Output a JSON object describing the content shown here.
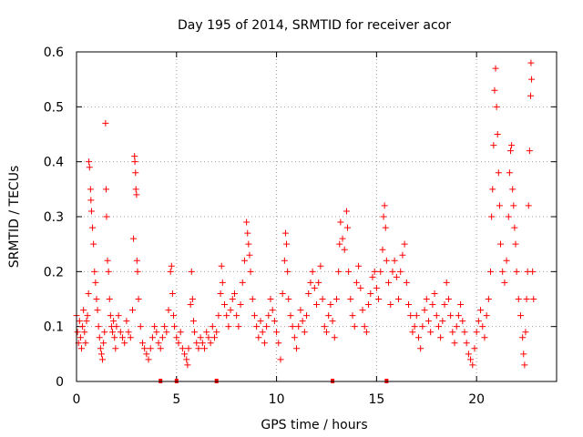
{
  "chart_data": {
    "type": "scatter",
    "title": "Day 195 of 2014, SRMTID for receiver acor",
    "xlabel": "GPS time / hours",
    "ylabel": "SRMTID / TECUs",
    "xlim": [
      0,
      24
    ],
    "ylim": [
      0,
      0.6
    ],
    "x_ticks": [
      0,
      5,
      10,
      15,
      20
    ],
    "y_ticks": [
      0,
      0.1,
      0.2,
      0.3,
      0.4,
      0.5,
      0.6
    ],
    "x_tick_labels": [
      "0",
      "5",
      "10",
      "15",
      "20"
    ],
    "y_tick_labels": [
      "0",
      "0.1",
      "0.2",
      "0.3",
      "0.4",
      "0.5",
      "0.6"
    ],
    "grid": true,
    "marker": "+",
    "color": "#ff0000",
    "series": [
      {
        "name": "SRMTID",
        "points": [
          [
            0.0,
            0.12
          ],
          [
            0.05,
            0.09
          ],
          [
            0.1,
            0.07
          ],
          [
            0.15,
            0.11
          ],
          [
            0.2,
            0.08
          ],
          [
            0.25,
            0.06
          ],
          [
            0.3,
            0.1
          ],
          [
            0.35,
            0.13
          ],
          [
            0.4,
            0.09
          ],
          [
            0.45,
            0.07
          ],
          [
            0.5,
            0.11
          ],
          [
            0.55,
            0.12
          ],
          [
            0.6,
            0.16
          ],
          [
            0.62,
            0.4
          ],
          [
            0.65,
            0.39
          ],
          [
            0.7,
            0.35
          ],
          [
            0.72,
            0.33
          ],
          [
            0.75,
            0.31
          ],
          [
            0.8,
            0.28
          ],
          [
            0.85,
            0.25
          ],
          [
            0.9,
            0.2
          ],
          [
            0.95,
            0.18
          ],
          [
            1.0,
            0.15
          ],
          [
            1.05,
            0.13
          ],
          [
            1.1,
            0.1
          ],
          [
            1.15,
            0.08
          ],
          [
            1.2,
            0.06
          ],
          [
            1.25,
            0.05
          ],
          [
            1.3,
            0.04
          ],
          [
            1.35,
            0.07
          ],
          [
            1.4,
            0.09
          ],
          [
            1.45,
            0.47
          ],
          [
            1.48,
            0.35
          ],
          [
            1.5,
            0.3
          ],
          [
            1.55,
            0.22
          ],
          [
            1.6,
            0.2
          ],
          [
            1.65,
            0.15
          ],
          [
            1.7,
            0.12
          ],
          [
            1.75,
            0.1
          ],
          [
            1.8,
            0.09
          ],
          [
            1.85,
            0.11
          ],
          [
            1.9,
            0.08
          ],
          [
            1.95,
            0.06
          ],
          [
            2.0,
            0.1
          ],
          [
            2.1,
            0.12
          ],
          [
            2.2,
            0.09
          ],
          [
            2.3,
            0.08
          ],
          [
            2.4,
            0.07
          ],
          [
            2.5,
            0.11
          ],
          [
            2.6,
            0.09
          ],
          [
            2.7,
            0.08
          ],
          [
            2.8,
            0.13
          ],
          [
            2.85,
            0.26
          ],
          [
            2.9,
            0.41
          ],
          [
            2.92,
            0.4
          ],
          [
            2.95,
            0.38
          ],
          [
            2.97,
            0.35
          ],
          [
            3.0,
            0.34
          ],
          [
            3.02,
            0.22
          ],
          [
            3.05,
            0.2
          ],
          [
            3.1,
            0.15
          ],
          [
            3.2,
            0.1
          ],
          [
            3.3,
            0.07
          ],
          [
            3.4,
            0.06
          ],
          [
            3.5,
            0.05
          ],
          [
            3.6,
            0.04
          ],
          [
            3.7,
            0.06
          ],
          [
            3.8,
            0.08
          ],
          [
            3.9,
            0.1
          ],
          [
            4.0,
            0.09
          ],
          [
            4.1,
            0.07
          ],
          [
            4.2,
            0.06
          ],
          [
            4.3,
            0.08
          ],
          [
            4.4,
            0.1
          ],
          [
            4.5,
            0.09
          ],
          [
            4.6,
            0.13
          ],
          [
            4.7,
            0.2
          ],
          [
            4.75,
            0.21
          ],
          [
            4.8,
            0.16
          ],
          [
            4.85,
            0.12
          ],
          [
            4.9,
            0.1
          ],
          [
            5.0,
            0.08
          ],
          [
            5.1,
            0.07
          ],
          [
            5.2,
            0.09
          ],
          [
            5.3,
            0.06
          ],
          [
            5.4,
            0.05
          ],
          [
            5.5,
            0.04
          ],
          [
            5.55,
            0.03
          ],
          [
            5.6,
            0.06
          ],
          [
            5.7,
            0.14
          ],
          [
            5.75,
            0.2
          ],
          [
            5.8,
            0.15
          ],
          [
            5.85,
            0.11
          ],
          [
            5.9,
            0.09
          ],
          [
            6.0,
            0.07
          ],
          [
            6.1,
            0.06
          ],
          [
            6.2,
            0.08
          ],
          [
            6.3,
            0.07
          ],
          [
            6.4,
            0.06
          ],
          [
            6.5,
            0.09
          ],
          [
            6.6,
            0.08
          ],
          [
            6.7,
            0.07
          ],
          [
            6.8,
            0.1
          ],
          [
            6.9,
            0.08
          ],
          [
            7.0,
            0.09
          ],
          [
            7.1,
            0.12
          ],
          [
            7.2,
            0.16
          ],
          [
            7.25,
            0.21
          ],
          [
            7.3,
            0.18
          ],
          [
            7.4,
            0.14
          ],
          [
            7.5,
            0.12
          ],
          [
            7.6,
            0.1
          ],
          [
            7.7,
            0.13
          ],
          [
            7.8,
            0.15
          ],
          [
            7.9,
            0.16
          ],
          [
            8.0,
            0.12
          ],
          [
            8.1,
            0.1
          ],
          [
            8.2,
            0.14
          ],
          [
            8.3,
            0.18
          ],
          [
            8.4,
            0.22
          ],
          [
            8.5,
            0.29
          ],
          [
            8.55,
            0.27
          ],
          [
            8.6,
            0.25
          ],
          [
            8.65,
            0.23
          ],
          [
            8.7,
            0.2
          ],
          [
            8.8,
            0.15
          ],
          [
            8.9,
            0.12
          ],
          [
            9.0,
            0.1
          ],
          [
            9.1,
            0.08
          ],
          [
            9.2,
            0.11
          ],
          [
            9.3,
            0.09
          ],
          [
            9.4,
            0.07
          ],
          [
            9.5,
            0.1
          ],
          [
            9.6,
            0.12
          ],
          [
            9.7,
            0.15
          ],
          [
            9.8,
            0.13
          ],
          [
            9.9,
            0.11
          ],
          [
            10.0,
            0.09
          ],
          [
            10.1,
            0.07
          ],
          [
            10.2,
            0.04
          ],
          [
            10.3,
            0.16
          ],
          [
            10.4,
            0.22
          ],
          [
            10.45,
            0.27
          ],
          [
            10.5,
            0.25
          ],
          [
            10.55,
            0.2
          ],
          [
            10.6,
            0.15
          ],
          [
            10.7,
            0.12
          ],
          [
            10.8,
            0.1
          ],
          [
            10.9,
            0.08
          ],
          [
            11.0,
            0.06
          ],
          [
            11.1,
            0.1
          ],
          [
            11.2,
            0.13
          ],
          [
            11.3,
            0.11
          ],
          [
            11.4,
            0.09
          ],
          [
            11.5,
            0.12
          ],
          [
            11.6,
            0.16
          ],
          [
            11.7,
            0.18
          ],
          [
            11.8,
            0.2
          ],
          [
            11.9,
            0.17
          ],
          [
            12.0,
            0.14
          ],
          [
            12.1,
            0.18
          ],
          [
            12.2,
            0.21
          ],
          [
            12.3,
            0.15
          ],
          [
            12.4,
            0.1
          ],
          [
            12.5,
            0.09
          ],
          [
            12.6,
            0.12
          ],
          [
            12.7,
            0.14
          ],
          [
            12.8,
            0.11
          ],
          [
            12.9,
            0.08
          ],
          [
            13.0,
            0.15
          ],
          [
            13.1,
            0.2
          ],
          [
            13.15,
            0.25
          ],
          [
            13.2,
            0.29
          ],
          [
            13.3,
            0.26
          ],
          [
            13.4,
            0.24
          ],
          [
            13.5,
            0.31
          ],
          [
            13.55,
            0.28
          ],
          [
            13.6,
            0.2
          ],
          [
            13.7,
            0.15
          ],
          [
            13.8,
            0.12
          ],
          [
            13.9,
            0.1
          ],
          [
            14.0,
            0.18
          ],
          [
            14.1,
            0.21
          ],
          [
            14.2,
            0.17
          ],
          [
            14.3,
            0.13
          ],
          [
            14.4,
            0.1
          ],
          [
            14.5,
            0.09
          ],
          [
            14.6,
            0.14
          ],
          [
            14.7,
            0.16
          ],
          [
            14.8,
            0.19
          ],
          [
            14.9,
            0.2
          ],
          [
            15.0,
            0.17
          ],
          [
            15.1,
            0.15
          ],
          [
            15.2,
            0.2
          ],
          [
            15.3,
            0.24
          ],
          [
            15.35,
            0.3
          ],
          [
            15.4,
            0.32
          ],
          [
            15.45,
            0.28
          ],
          [
            15.5,
            0.22
          ],
          [
            15.6,
            0.18
          ],
          [
            15.7,
            0.14
          ],
          [
            15.8,
            0.2
          ],
          [
            15.9,
            0.22
          ],
          [
            16.0,
            0.19
          ],
          [
            16.1,
            0.15
          ],
          [
            16.2,
            0.2
          ],
          [
            16.3,
            0.23
          ],
          [
            16.4,
            0.25
          ],
          [
            16.5,
            0.18
          ],
          [
            16.6,
            0.14
          ],
          [
            16.7,
            0.12
          ],
          [
            16.8,
            0.09
          ],
          [
            16.9,
            0.1
          ],
          [
            17.0,
            0.12
          ],
          [
            17.1,
            0.08
          ],
          [
            17.2,
            0.06
          ],
          [
            17.3,
            0.1
          ],
          [
            17.4,
            0.13
          ],
          [
            17.5,
            0.15
          ],
          [
            17.6,
            0.11
          ],
          [
            17.7,
            0.09
          ],
          [
            17.8,
            0.14
          ],
          [
            17.9,
            0.16
          ],
          [
            18.0,
            0.12
          ],
          [
            18.1,
            0.1
          ],
          [
            18.2,
            0.08
          ],
          [
            18.3,
            0.11
          ],
          [
            18.4,
            0.14
          ],
          [
            18.5,
            0.18
          ],
          [
            18.6,
            0.15
          ],
          [
            18.7,
            0.12
          ],
          [
            18.8,
            0.09
          ],
          [
            18.9,
            0.07
          ],
          [
            19.0,
            0.1
          ],
          [
            19.1,
            0.12
          ],
          [
            19.2,
            0.14
          ],
          [
            19.3,
            0.11
          ],
          [
            19.4,
            0.09
          ],
          [
            19.5,
            0.07
          ],
          [
            19.6,
            0.05
          ],
          [
            19.7,
            0.04
          ],
          [
            19.8,
            0.03
          ],
          [
            19.9,
            0.06
          ],
          [
            20.0,
            0.09
          ],
          [
            20.1,
            0.11
          ],
          [
            20.2,
            0.13
          ],
          [
            20.3,
            0.1
          ],
          [
            20.4,
            0.08
          ],
          [
            20.5,
            0.12
          ],
          [
            20.6,
            0.15
          ],
          [
            20.7,
            0.2
          ],
          [
            20.75,
            0.3
          ],
          [
            20.8,
            0.35
          ],
          [
            20.85,
            0.43
          ],
          [
            20.9,
            0.53
          ],
          [
            20.95,
            0.57
          ],
          [
            21.0,
            0.5
          ],
          [
            21.05,
            0.45
          ],
          [
            21.1,
            0.38
          ],
          [
            21.15,
            0.32
          ],
          [
            21.2,
            0.25
          ],
          [
            21.3,
            0.2
          ],
          [
            21.4,
            0.18
          ],
          [
            21.5,
            0.22
          ],
          [
            21.6,
            0.3
          ],
          [
            21.65,
            0.38
          ],
          [
            21.7,
            0.42
          ],
          [
            21.75,
            0.43
          ],
          [
            21.8,
            0.35
          ],
          [
            21.85,
            0.32
          ],
          [
            21.9,
            0.28
          ],
          [
            21.95,
            0.25
          ],
          [
            22.0,
            0.2
          ],
          [
            22.1,
            0.15
          ],
          [
            22.2,
            0.12
          ],
          [
            22.3,
            0.08
          ],
          [
            22.35,
            0.05
          ],
          [
            22.4,
            0.03
          ],
          [
            22.45,
            0.09
          ],
          [
            22.5,
            0.15
          ],
          [
            22.55,
            0.2
          ],
          [
            22.6,
            0.32
          ],
          [
            22.65,
            0.42
          ],
          [
            22.7,
            0.52
          ],
          [
            22.72,
            0.58
          ],
          [
            22.75,
            0.55
          ],
          [
            22.8,
            0.2
          ],
          [
            22.85,
            0.15
          ]
        ]
      }
    ],
    "flag_markers": [
      4.2,
      5.0,
      7.0,
      12.8,
      15.5
    ]
  }
}
